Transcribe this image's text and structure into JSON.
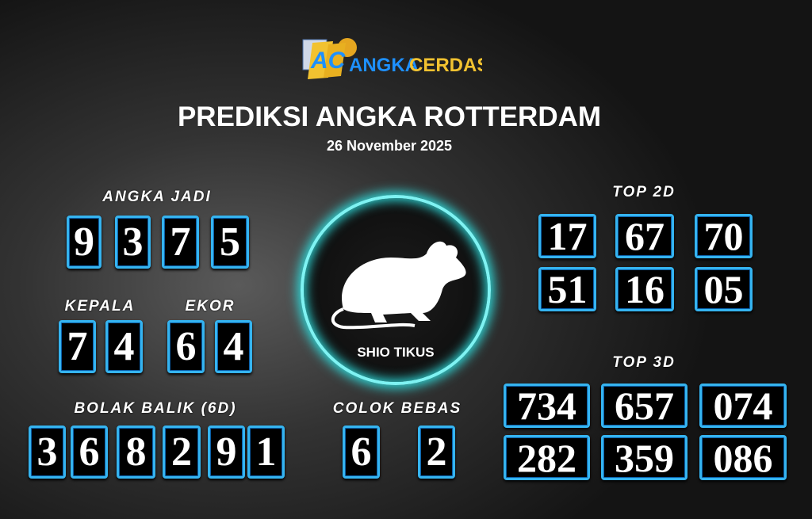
{
  "logo": {
    "text_left": "ANGKA",
    "text_right": "CERDAS",
    "initials": "AC"
  },
  "title": "PREDIKSI ANGKA ROTTERDAM",
  "date": "26 November 2025",
  "angka_jadi": {
    "label": "ANGKA JADI",
    "digits": [
      "9",
      "3",
      "7",
      "5"
    ]
  },
  "kepala": {
    "label": "KEPALA",
    "digits": [
      "7",
      "4"
    ]
  },
  "ekor": {
    "label": "EKOR",
    "digits": [
      "6",
      "4"
    ]
  },
  "bolak_balik": {
    "label": "BOLAK BALIK (6D)",
    "digits": [
      "3",
      "6",
      "8",
      "2",
      "9",
      "1"
    ]
  },
  "colok_bebas": {
    "label": "COLOK BEBAS",
    "digits": [
      "6",
      "2"
    ]
  },
  "shio": {
    "label": "SHIO TIKUS",
    "icon": "rat-icon"
  },
  "top2d": {
    "label": "TOP 2D",
    "values": [
      "17",
      "67",
      "70",
      "51",
      "16",
      "05"
    ]
  },
  "top3d": {
    "label": "TOP 3D",
    "values": [
      "734",
      "657",
      "074",
      "282",
      "359",
      "086"
    ]
  },
  "colors": {
    "box_border": "#35b4f0",
    "glow": "#2fd6d6",
    "logo_yellow": "#f2c230",
    "logo_blue": "#1e90ff"
  }
}
